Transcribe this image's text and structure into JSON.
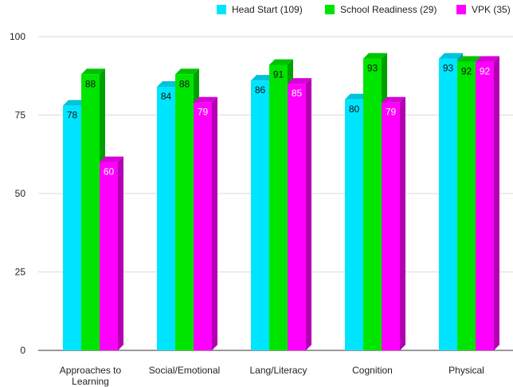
{
  "chart_data": {
    "type": "bar",
    "title": "",
    "xlabel": "",
    "ylabel": "",
    "ylim": [
      0,
      100
    ],
    "yticks": [
      0,
      25,
      50,
      75,
      100
    ],
    "grid": true,
    "legend_position": "top-right",
    "style": "3d-bar",
    "categories": [
      [
        "Approaches to",
        "Learning"
      ],
      [
        "Social/Emotional"
      ],
      [
        "Lang/Literacy"
      ],
      [
        "Cognition"
      ],
      [
        "Physical"
      ]
    ],
    "series": [
      {
        "name": "Head Start (109)",
        "color": "#00e5ff",
        "values": [
          78,
          84,
          86,
          80,
          93
        ]
      },
      {
        "name": "School Readiness (29)",
        "color": "#00e500",
        "values": [
          88,
          88,
          91,
          93,
          92
        ]
      },
      {
        "name": "VPK (35)",
        "color": "#ff00ff",
        "values": [
          60,
          79,
          85,
          79,
          92
        ]
      }
    ]
  }
}
